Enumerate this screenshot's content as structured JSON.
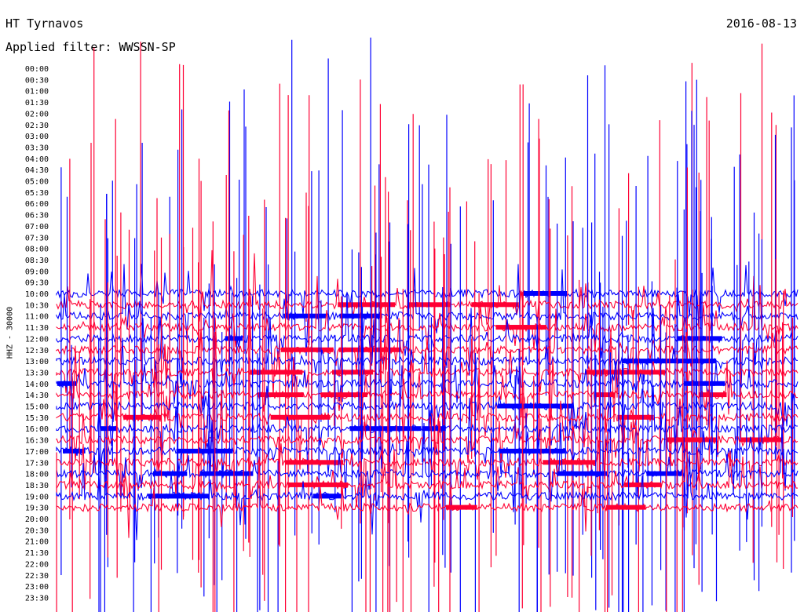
{
  "header": {
    "station": "HT Tyrnavos",
    "filter_label": "Applied filter: WWSSN-SP",
    "date": "2016-08-13"
  },
  "axis": {
    "y_label": "HHZ - 30000"
  },
  "chart_data": {
    "type": "line",
    "title": "HT Tyrnavos",
    "subtitle": "Applied filter: WWSSN-SP",
    "date": "2016-08-13",
    "ylabel": "HHZ - 30000",
    "y_ticks": [
      "00:00",
      "00:30",
      "01:00",
      "01:30",
      "02:00",
      "02:30",
      "03:00",
      "03:30",
      "04:00",
      "04:30",
      "05:00",
      "05:30",
      "06:00",
      "06:30",
      "07:00",
      "07:30",
      "08:00",
      "08:30",
      "09:00",
      "09:30",
      "10:00",
      "10:30",
      "11:00",
      "11:30",
      "12:00",
      "12:30",
      "13:00",
      "13:30",
      "14:00",
      "14:30",
      "15:00",
      "15:30",
      "16:00",
      "16:30",
      "17:00",
      "17:30",
      "18:00",
      "18:30",
      "19:00",
      "19:30",
      "20:00",
      "20:30",
      "21:00",
      "21:30",
      "22:00",
      "22:30",
      "23:00",
      "23:30"
    ],
    "trace_colors": [
      "#0000ff",
      "#ff0033"
    ],
    "active_rows": [
      "10:00",
      "10:30",
      "11:00",
      "11:30",
      "12:00",
      "12:30",
      "13:00",
      "13:30",
      "14:00",
      "14:30",
      "15:00",
      "15:30",
      "16:00",
      "16:30",
      "17:00",
      "17:30",
      "18:00",
      "18:30",
      "19:00",
      "19:30"
    ],
    "grid": false
  }
}
